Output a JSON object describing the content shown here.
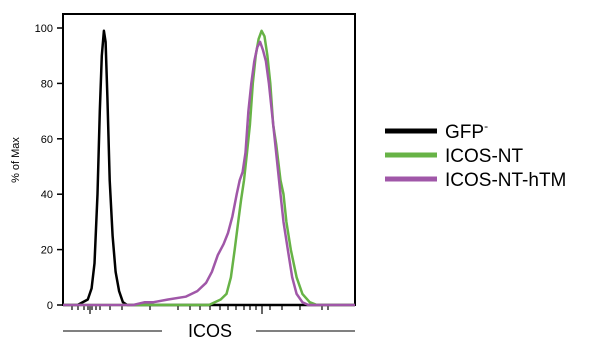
{
  "chart_data": {
    "type": "line",
    "xlabel": "ICOS",
    "ylabel": "% of Max",
    "ylim": [
      0,
      100
    ],
    "yticks": [
      0,
      20,
      40,
      60,
      80,
      100
    ],
    "xscale": "log (biexponential)",
    "grid": false,
    "legend_position": "right",
    "series": [
      {
        "name": "GFP",
        "name_superscript": "-",
        "color": "#000000",
        "points": [
          [
            0,
            0
          ],
          [
            0.2,
            0
          ],
          [
            0.5,
            0
          ],
          [
            0.85,
            2
          ],
          [
            0.98,
            6
          ],
          [
            1.08,
            15
          ],
          [
            1.18,
            40
          ],
          [
            1.26,
            70
          ],
          [
            1.33,
            90
          ],
          [
            1.4,
            99
          ],
          [
            1.46,
            95
          ],
          [
            1.52,
            75
          ],
          [
            1.6,
            45
          ],
          [
            1.7,
            25
          ],
          [
            1.8,
            12
          ],
          [
            1.92,
            5
          ],
          [
            2.05,
            1
          ],
          [
            2.2,
            0
          ],
          [
            5,
            0
          ],
          [
            9,
            0
          ],
          [
            10,
            0
          ]
        ]
      },
      {
        "name": "ICOS-NT",
        "color": "#67b346",
        "points": [
          [
            0,
            0
          ],
          [
            4.5,
            0
          ],
          [
            5,
            0
          ],
          [
            5.2,
            1
          ],
          [
            5.4,
            2
          ],
          [
            5.6,
            4
          ],
          [
            5.75,
            10
          ],
          [
            5.88,
            20
          ],
          [
            6.0,
            30
          ],
          [
            6.1,
            38
          ],
          [
            6.2,
            45
          ],
          [
            6.3,
            55
          ],
          [
            6.4,
            65
          ],
          [
            6.5,
            80
          ],
          [
            6.6,
            90
          ],
          [
            6.7,
            96
          ],
          [
            6.8,
            99
          ],
          [
            6.9,
            97
          ],
          [
            7.0,
            90
          ],
          [
            7.1,
            80
          ],
          [
            7.2,
            65
          ],
          [
            7.3,
            58
          ],
          [
            7.45,
            45
          ],
          [
            7.55,
            40
          ],
          [
            7.65,
            30
          ],
          [
            7.8,
            20
          ],
          [
            8.0,
            10
          ],
          [
            8.2,
            4
          ],
          [
            8.45,
            1
          ],
          [
            8.7,
            0
          ],
          [
            10,
            0
          ]
        ]
      },
      {
        "name": "ICOS-NT-hTM",
        "color": "#a057a8",
        "points": [
          [
            0,
            0
          ],
          [
            2.4,
            0
          ],
          [
            2.8,
            1
          ],
          [
            3.1,
            1
          ],
          [
            3.6,
            2
          ],
          [
            4.2,
            3
          ],
          [
            4.6,
            5
          ],
          [
            4.9,
            8
          ],
          [
            5.1,
            12
          ],
          [
            5.3,
            18
          ],
          [
            5.5,
            22
          ],
          [
            5.65,
            26
          ],
          [
            5.8,
            32
          ],
          [
            5.95,
            40
          ],
          [
            6.05,
            45
          ],
          [
            6.15,
            48
          ],
          [
            6.25,
            55
          ],
          [
            6.35,
            70
          ],
          [
            6.45,
            80
          ],
          [
            6.55,
            88
          ],
          [
            6.65,
            93
          ],
          [
            6.75,
            95
          ],
          [
            6.85,
            92
          ],
          [
            6.95,
            88
          ],
          [
            7.05,
            80
          ],
          [
            7.15,
            70
          ],
          [
            7.25,
            60
          ],
          [
            7.35,
            50
          ],
          [
            7.45,
            40
          ],
          [
            7.55,
            30
          ],
          [
            7.7,
            20
          ],
          [
            7.85,
            10
          ],
          [
            8.0,
            4
          ],
          [
            8.2,
            1
          ],
          [
            8.4,
            0
          ],
          [
            10,
            0
          ]
        ]
      }
    ]
  }
}
